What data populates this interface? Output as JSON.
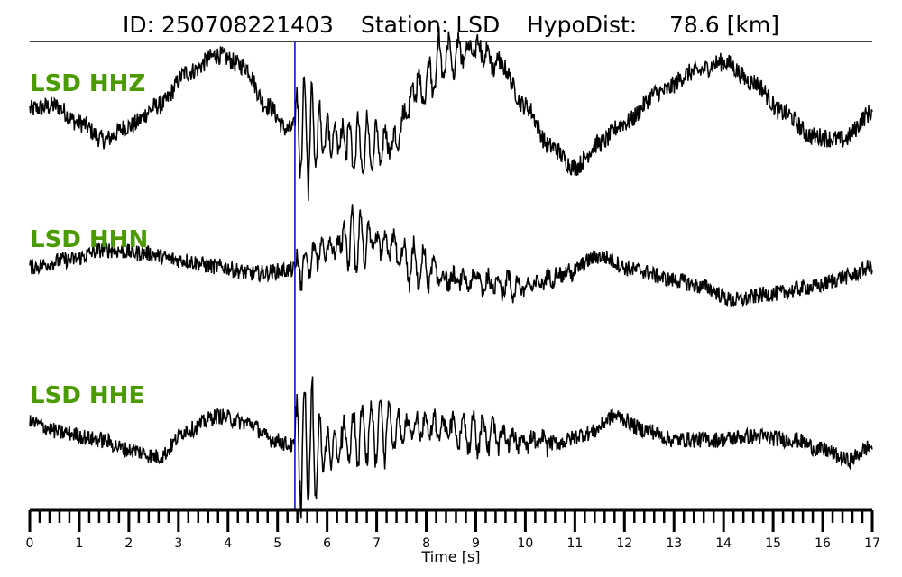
{
  "header": {
    "id_text": "ID: 250708221403",
    "station_text": "Station: LSD",
    "dist_text": "HypoDist:",
    "dist_value": "78.6 [km]"
  },
  "chart_data": {
    "type": "line",
    "title": "ID: 250708221403   Station: LSD   HypoDist:    78.6 [km]",
    "xlabel": "Time [s]",
    "xlim": [
      0,
      17
    ],
    "x_ticks": [
      0,
      1,
      2,
      3,
      4,
      5,
      6,
      7,
      8,
      9,
      10,
      11,
      12,
      13,
      14,
      15,
      16,
      17
    ],
    "x_tick_labels": [
      "0",
      "1",
      "2",
      "3",
      "4",
      "5",
      "6",
      "7",
      "8",
      "9",
      "10",
      "11",
      "12",
      "13",
      "14",
      "15",
      "16",
      "17"
    ],
    "minor_tick_step": 0.2,
    "pick_time": 5.35,
    "pick_color": "#0000cc",
    "trace_color": "#000000",
    "label_color": "#4a9a00",
    "grid": false,
    "series": [
      {
        "name": "LSD HHZ",
        "keypoints": [
          [
            0,
            0.05
          ],
          [
            0.5,
            0.1
          ],
          [
            1,
            -0.15
          ],
          [
            1.5,
            -0.4
          ],
          [
            2,
            -0.2
          ],
          [
            2.6,
            0.1
          ],
          [
            3.2,
            0.6
          ],
          [
            3.8,
            0.85
          ],
          [
            4.3,
            0.7
          ],
          [
            4.8,
            0.1
          ],
          [
            5.2,
            -0.25
          ],
          [
            5.35,
            -0.2
          ],
          [
            6,
            -0.35
          ],
          [
            6.6,
            -0.5
          ],
          [
            7.3,
            -0.45
          ],
          [
            7.8,
            0.3
          ],
          [
            8.4,
            0.8
          ],
          [
            9,
            0.95
          ],
          [
            9.5,
            0.7
          ],
          [
            10,
            0.1
          ],
          [
            10.5,
            -0.5
          ],
          [
            11,
            -0.8
          ],
          [
            11.5,
            -0.45
          ],
          [
            12,
            -0.15
          ],
          [
            12.7,
            0.3
          ],
          [
            13.4,
            0.6
          ],
          [
            14,
            0.75
          ],
          [
            14.6,
            0.45
          ],
          [
            15.2,
            0.0
          ],
          [
            15.8,
            -0.35
          ],
          [
            16.4,
            -0.4
          ],
          [
            17,
            0.0
          ]
        ],
        "noise": 0.14,
        "bursts": [
          {
            "start": 5.35,
            "end": 6.4,
            "amp": 0.95,
            "freq": 6.5
          },
          {
            "start": 6.4,
            "end": 7.8,
            "amp": 0.55,
            "freq": 5.5
          },
          {
            "start": 7.8,
            "end": 9.5,
            "amp": 0.45,
            "freq": 5.0
          }
        ]
      },
      {
        "name": "LSD HHN",
        "keypoints": [
          [
            0,
            -0.05
          ],
          [
            0.8,
            0.05
          ],
          [
            1.5,
            0.2
          ],
          [
            2.3,
            0.15
          ],
          [
            3,
            0.05
          ],
          [
            3.8,
            -0.05
          ],
          [
            4.5,
            -0.15
          ],
          [
            5.35,
            -0.1
          ],
          [
            6,
            0.2
          ],
          [
            6.6,
            0.35
          ],
          [
            7.2,
            0.25
          ],
          [
            7.8,
            -0.05
          ],
          [
            8.6,
            -0.25
          ],
          [
            9.3,
            -0.3
          ],
          [
            10,
            -0.35
          ],
          [
            10.8,
            -0.15
          ],
          [
            11.5,
            0.1
          ],
          [
            12.2,
            -0.1
          ],
          [
            13,
            -0.25
          ],
          [
            13.6,
            -0.35
          ],
          [
            14.2,
            -0.55
          ],
          [
            15,
            -0.45
          ],
          [
            15.8,
            -0.35
          ],
          [
            16.5,
            -0.2
          ],
          [
            17,
            -0.05
          ]
        ],
        "noise": 0.12,
        "bursts": [
          {
            "start": 5.35,
            "end": 6.3,
            "amp": 0.3,
            "freq": 6.0
          },
          {
            "start": 6.3,
            "end": 7.3,
            "amp": 0.55,
            "freq": 6.0
          },
          {
            "start": 7.3,
            "end": 9.0,
            "amp": 0.35,
            "freq": 5.0
          },
          {
            "start": 9.0,
            "end": 11.0,
            "amp": 0.2,
            "freq": 5.0
          }
        ]
      },
      {
        "name": "LSD HHE",
        "keypoints": [
          [
            0,
            0.2
          ],
          [
            0.7,
            0.05
          ],
          [
            1.4,
            -0.05
          ],
          [
            2,
            -0.2
          ],
          [
            2.6,
            -0.3
          ],
          [
            3.2,
            0.1
          ],
          [
            3.8,
            0.3
          ],
          [
            4.4,
            0.2
          ],
          [
            4.9,
            -0.05
          ],
          [
            5.35,
            -0.15
          ],
          [
            6,
            -0.2
          ],
          [
            7,
            0.1
          ],
          [
            8,
            0.15
          ],
          [
            9,
            0.05
          ],
          [
            9.8,
            -0.05
          ],
          [
            10.6,
            -0.1
          ],
          [
            11.3,
            0.05
          ],
          [
            11.8,
            0.3
          ],
          [
            12.4,
            0.1
          ],
          [
            13,
            -0.05
          ],
          [
            13.8,
            -0.05
          ],
          [
            14.6,
            -0.0
          ],
          [
            15.4,
            -0.05
          ],
          [
            16,
            -0.2
          ],
          [
            16.5,
            -0.35
          ],
          [
            17,
            -0.15
          ]
        ],
        "noise": 0.12,
        "bursts": [
          {
            "start": 5.35,
            "end": 6.3,
            "amp": 1.25,
            "freq": 6.5
          },
          {
            "start": 6.3,
            "end": 8.5,
            "amp": 0.6,
            "freq": 5.5
          },
          {
            "start": 8.5,
            "end": 10.5,
            "amp": 0.35,
            "freq": 5.0
          }
        ]
      }
    ]
  }
}
